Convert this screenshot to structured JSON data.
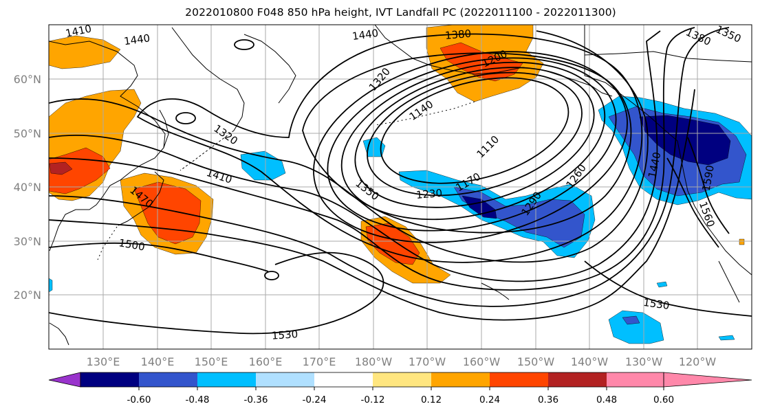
{
  "title": "2022010800 F048 850 hPa height, IVT Landfall PC (2022011100 - 2022011300)",
  "lat_labels": [
    "60°N",
    "50°N",
    "40°N",
    "30°N",
    "20°N"
  ],
  "lon_labels": [
    "130°E",
    "140°E",
    "150°E",
    "160°E",
    "170°E",
    "180°W",
    "170°W",
    "160°W",
    "150°W",
    "140°W",
    "130°W",
    "120°W"
  ],
  "contour_labels": [
    "1410",
    "1440",
    "1440",
    "1380",
    "1380",
    "1350",
    "1320",
    "1200",
    "1140",
    "1110",
    "1320",
    "1410",
    "1350",
    "1170",
    "1230",
    "1290",
    "1260",
    "1440",
    "1590",
    "1560",
    "1470",
    "1500",
    "1530",
    "1530"
  ],
  "colorbar": {
    "tick_labels": [
      "-0.60",
      "-0.48",
      "-0.36",
      "-0.24",
      "-0.12",
      "0.12",
      "0.24",
      "0.36",
      "0.48",
      "0.60"
    ],
    "levels": [
      -0.6,
      -0.48,
      -0.36,
      -0.24,
      -0.12,
      0.12,
      0.24,
      0.36,
      0.48,
      0.6
    ],
    "colors": [
      "#9933cc",
      "#000080",
      "#3355cc",
      "#00bfff",
      "#b0e0ff",
      "#ffffff",
      "#ffe680",
      "#ffa500",
      "#ff4500",
      "#b22222",
      "#ff88aa"
    ],
    "extend": "both"
  },
  "field_colors": {
    "pos_light": "#ffa500",
    "pos_strong": "#ff4500",
    "pos_max": "#b22222",
    "neg_light": "#00bfff",
    "neg_mid": "#3355cc",
    "neg_strong": "#000080"
  }
}
